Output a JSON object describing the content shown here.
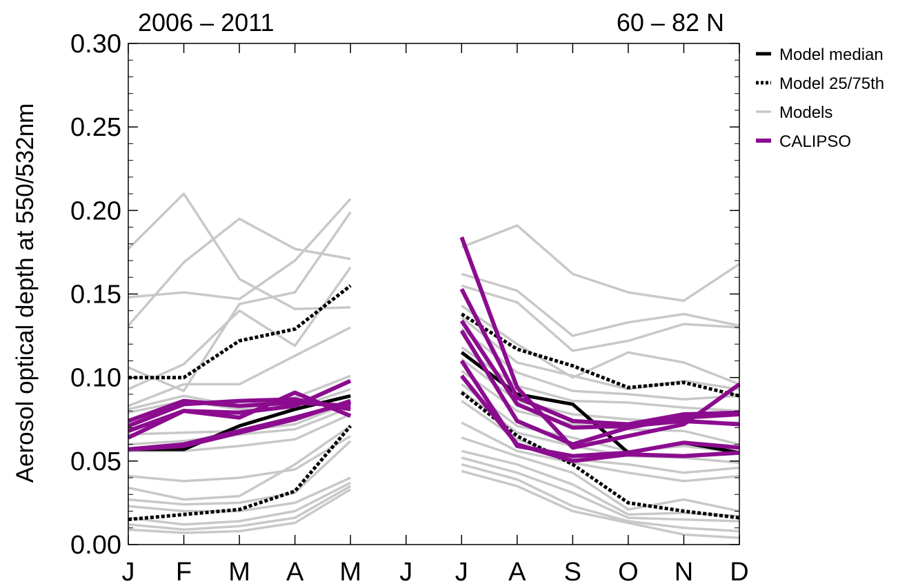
{
  "chart_data": {
    "type": "line",
    "title_left": "2006 – 2011",
    "title_right": "60 – 82 N",
    "xlabel": "",
    "ylabel": "Aerosol optical depth at 550/532nm",
    "x_categories": [
      "J",
      "F",
      "M",
      "A",
      "M",
      "J",
      "J",
      "A",
      "S",
      "O",
      "N",
      "D"
    ],
    "ylim": [
      0.0,
      0.3
    ],
    "yticks": [
      0.0,
      0.05,
      0.1,
      0.15,
      0.2,
      0.25,
      0.3
    ],
    "ytick_labels": [
      "0.00",
      "0.05",
      "0.10",
      "0.15",
      "0.20",
      "0.25",
      "0.30"
    ],
    "grid": false,
    "legend_position": "outside-right-top",
    "colors": {
      "median": "#000000",
      "quartiles": "#000000",
      "models": "#c8c8c8",
      "calipso": "#8b0c8f"
    },
    "legend": [
      {
        "label": "Model median",
        "style": "median"
      },
      {
        "label": "Model 25/75th",
        "style": "quartiles"
      },
      {
        "label": "Models",
        "style": "models"
      },
      {
        "label": "CALIPSO",
        "style": "calipso"
      }
    ],
    "segments_note_months": [
      [
        0,
        1,
        2,
        3,
        4
      ],
      [
        6,
        7,
        8,
        9,
        10,
        11
      ]
    ],
    "series": [
      {
        "name": "Models",
        "group": "models",
        "values": [
          0.177,
          0.21,
          0.159,
          0.141,
          0.142,
          null,
          0.178,
          0.191,
          0.162,
          0.151,
          0.146,
          0.168
        ]
      },
      {
        "name": "Models",
        "group": "models",
        "values": [
          0.131,
          0.169,
          0.195,
          0.177,
          0.171,
          null,
          0.162,
          0.152,
          0.125,
          0.133,
          0.138,
          0.131
        ]
      },
      {
        "name": "Models",
        "group": "models",
        "values": [
          0.148,
          0.151,
          0.147,
          0.17,
          0.207,
          null,
          0.155,
          0.145,
          0.116,
          0.122,
          0.132,
          0.13
        ]
      },
      {
        "name": "Models",
        "group": "models",
        "values": [
          0.106,
          0.092,
          0.144,
          0.151,
          0.199,
          null,
          0.143,
          0.12,
          0.1,
          0.115,
          0.109,
          0.096
        ]
      },
      {
        "name": "Models",
        "group": "models",
        "values": [
          0.093,
          0.108,
          0.14,
          0.119,
          0.166,
          null,
          0.136,
          0.109,
          0.101,
          0.093,
          0.098,
          0.093
        ]
      },
      {
        "name": "Models",
        "group": "models",
        "values": [
          0.083,
          0.096,
          0.096,
          0.113,
          0.13,
          null,
          0.129,
          0.103,
          0.092,
          0.09,
          0.087,
          0.089
        ]
      },
      {
        "name": "Models",
        "group": "models",
        "values": [
          0.081,
          0.089,
          0.083,
          0.088,
          0.101,
          null,
          0.118,
          0.095,
          0.086,
          0.085,
          0.082,
          0.08
        ]
      },
      {
        "name": "Models",
        "group": "models",
        "values": [
          0.079,
          0.086,
          0.081,
          0.082,
          0.093,
          null,
          0.111,
          0.086,
          0.078,
          0.075,
          0.073,
          0.073
        ]
      },
      {
        "name": "Models",
        "group": "models",
        "values": [
          0.066,
          0.067,
          0.068,
          0.072,
          0.085,
          null,
          0.104,
          0.08,
          0.072,
          0.069,
          0.068,
          0.06
        ]
      },
      {
        "name": "Models",
        "group": "models",
        "values": [
          0.06,
          0.062,
          0.066,
          0.069,
          0.082,
          null,
          0.096,
          0.071,
          0.064,
          0.056,
          0.059,
          0.055
        ]
      },
      {
        "name": "Models",
        "group": "models",
        "values": [
          0.056,
          0.056,
          0.059,
          0.063,
          0.078,
          null,
          0.092,
          0.067,
          0.059,
          0.053,
          0.052,
          0.049
        ]
      },
      {
        "name": "Models",
        "group": "models",
        "values": [
          0.041,
          0.038,
          0.04,
          0.045,
          0.065,
          null,
          0.086,
          0.063,
          0.051,
          0.048,
          0.043,
          0.046
        ]
      },
      {
        "name": "Models",
        "group": "models",
        "values": [
          0.034,
          0.027,
          0.029,
          0.048,
          0.071,
          null,
          0.073,
          0.056,
          0.049,
          0.043,
          0.038,
          0.041
        ]
      },
      {
        "name": "Models",
        "group": "models",
        "values": [
          0.027,
          0.024,
          0.025,
          0.031,
          0.062,
          null,
          0.064,
          0.053,
          0.043,
          0.021,
          0.027,
          0.02
        ]
      },
      {
        "name": "Models",
        "group": "models",
        "values": [
          0.023,
          0.02,
          0.02,
          0.025,
          0.04,
          null,
          0.056,
          0.048,
          0.036,
          0.018,
          0.019,
          0.017
        ]
      },
      {
        "name": "Models",
        "group": "models",
        "values": [
          0.016,
          0.012,
          0.014,
          0.02,
          0.037,
          null,
          0.052,
          0.043,
          0.031,
          0.016,
          0.015,
          0.014
        ]
      },
      {
        "name": "Models",
        "group": "models",
        "values": [
          0.012,
          0.009,
          0.011,
          0.016,
          0.035,
          null,
          0.048,
          0.039,
          0.023,
          0.014,
          0.01,
          0.008
        ]
      },
      {
        "name": "Models",
        "group": "models",
        "values": [
          0.009,
          0.007,
          0.008,
          0.013,
          0.033,
          null,
          0.044,
          0.035,
          0.02,
          0.013,
          0.006,
          0.004
        ]
      },
      {
        "name": "Model 25/75th",
        "group": "quartiles",
        "values": [
          0.1,
          0.1,
          0.122,
          0.129,
          0.155,
          null,
          0.138,
          0.117,
          0.107,
          0.094,
          0.097,
          0.089
        ]
      },
      {
        "name": "Model 25/75th",
        "group": "quartiles",
        "values": [
          0.015,
          0.018,
          0.021,
          0.032,
          0.071,
          null,
          0.091,
          0.065,
          0.048,
          0.025,
          0.02,
          0.016
        ]
      },
      {
        "name": "Model median",
        "group": "median",
        "values": [
          0.057,
          0.057,
          0.071,
          0.081,
          0.089,
          null,
          0.115,
          0.09,
          0.084,
          0.055,
          0.061,
          0.055
        ]
      },
      {
        "name": "CALIPSO",
        "group": "calipso",
        "values": [
          0.074,
          0.086,
          0.083,
          0.085,
          0.083,
          null,
          0.184,
          0.094,
          0.058,
          0.065,
          0.072,
          0.096
        ]
      },
      {
        "name": "CALIPSO",
        "group": "calipso",
        "values": [
          0.071,
          0.084,
          0.086,
          0.087,
          0.081,
          null,
          0.153,
          0.088,
          0.074,
          0.072,
          0.078,
          0.079
        ]
      },
      {
        "name": "CALIPSO",
        "group": "calipso",
        "values": [
          0.068,
          0.08,
          0.076,
          0.091,
          0.077,
          null,
          0.134,
          0.084,
          0.07,
          0.071,
          0.074,
          0.072
        ]
      },
      {
        "name": "CALIPSO",
        "group": "calipso",
        "values": [
          0.064,
          0.08,
          0.079,
          0.083,
          0.098,
          null,
          0.128,
          0.074,
          0.06,
          0.07,
          0.076,
          0.078
        ]
      },
      {
        "name": "CALIPSO",
        "group": "calipso",
        "values": [
          0.057,
          0.06,
          0.068,
          0.076,
          0.085,
          null,
          0.11,
          0.059,
          0.053,
          0.055,
          0.061,
          0.058
        ]
      },
      {
        "name": "CALIPSO",
        "group": "calipso",
        "values": [
          0.057,
          0.059,
          0.067,
          0.075,
          0.086,
          null,
          0.101,
          0.06,
          0.05,
          0.054,
          0.053,
          0.055
        ]
      }
    ]
  }
}
